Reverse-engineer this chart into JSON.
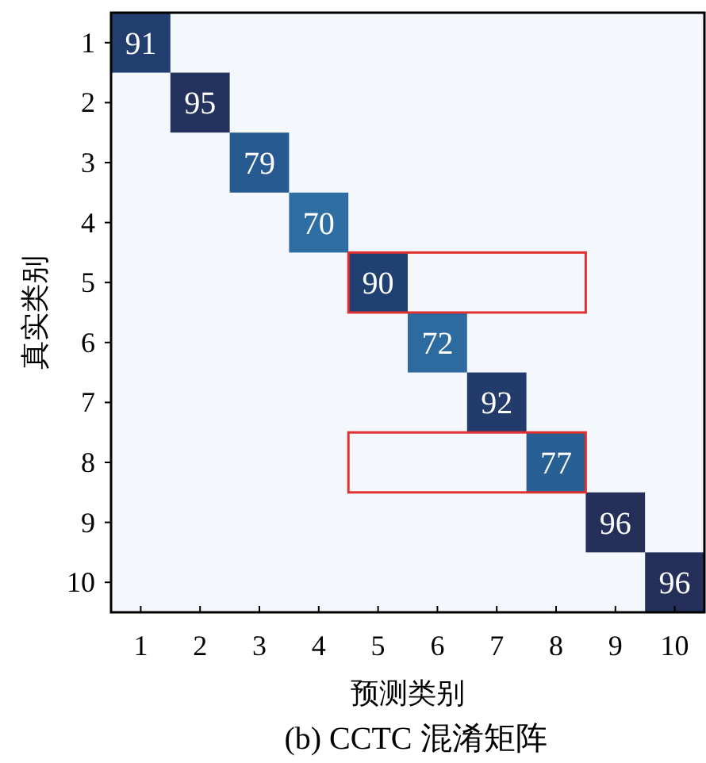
{
  "chart_data": {
    "type": "heatmap",
    "title": "(b) CCTC 混淆矩阵",
    "xlabel": "预测类别",
    "ylabel": "真实类别",
    "categories": [
      "1",
      "2",
      "3",
      "4",
      "5",
      "6",
      "7",
      "8",
      "9",
      "10"
    ],
    "y_categories": [
      "1",
      "2",
      "3",
      "4",
      "5",
      "6",
      "7",
      "8",
      "9",
      "10"
    ],
    "cells": [
      [
        91,
        null,
        null,
        null,
        null,
        null,
        null,
        null,
        null,
        null
      ],
      [
        null,
        95,
        null,
        null,
        null,
        null,
        null,
        null,
        null,
        null
      ],
      [
        null,
        null,
        79,
        null,
        null,
        null,
        null,
        null,
        null,
        null
      ],
      [
        null,
        null,
        null,
        70,
        null,
        null,
        null,
        null,
        null,
        null
      ],
      [
        null,
        null,
        null,
        null,
        90,
        null,
        null,
        null,
        null,
        null
      ],
      [
        null,
        null,
        null,
        null,
        null,
        72,
        null,
        null,
        null,
        null
      ],
      [
        null,
        null,
        null,
        null,
        null,
        null,
        92,
        null,
        null,
        null
      ],
      [
        null,
        null,
        null,
        null,
        null,
        null,
        null,
        77,
        null,
        null
      ],
      [
        null,
        null,
        null,
        null,
        null,
        null,
        null,
        null,
        96,
        null
      ],
      [
        null,
        null,
        null,
        null,
        null,
        null,
        null,
        null,
        null,
        96
      ]
    ],
    "data_labels": true
  }
}
